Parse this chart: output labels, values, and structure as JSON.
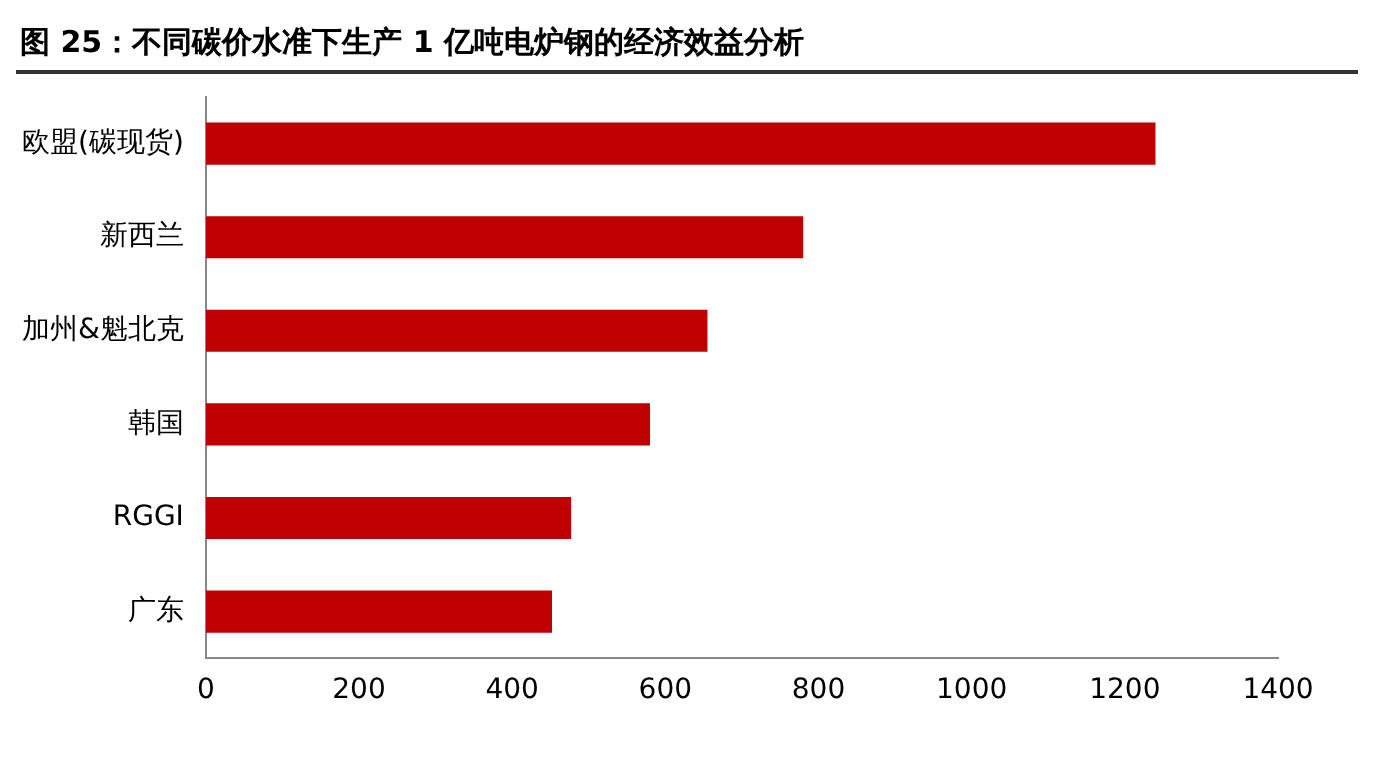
{
  "chart_data": {
    "type": "bar",
    "orientation": "horizontal",
    "title": "图 25：不同碳价水准下生产 1 亿吨电炉钢的经济效益分析",
    "categories": [
      "欧盟(碳现货)",
      "新西兰",
      "加州&魁北克",
      "韩国",
      "RGGI",
      "广东"
    ],
    "values": [
      1240,
      780,
      655,
      580,
      477,
      452
    ],
    "color": "#c00000",
    "xlim": [
      0,
      1400
    ],
    "xticks": [
      0,
      200,
      400,
      600,
      800,
      1000,
      1200,
      1400
    ],
    "grid": false,
    "legend": false
  }
}
